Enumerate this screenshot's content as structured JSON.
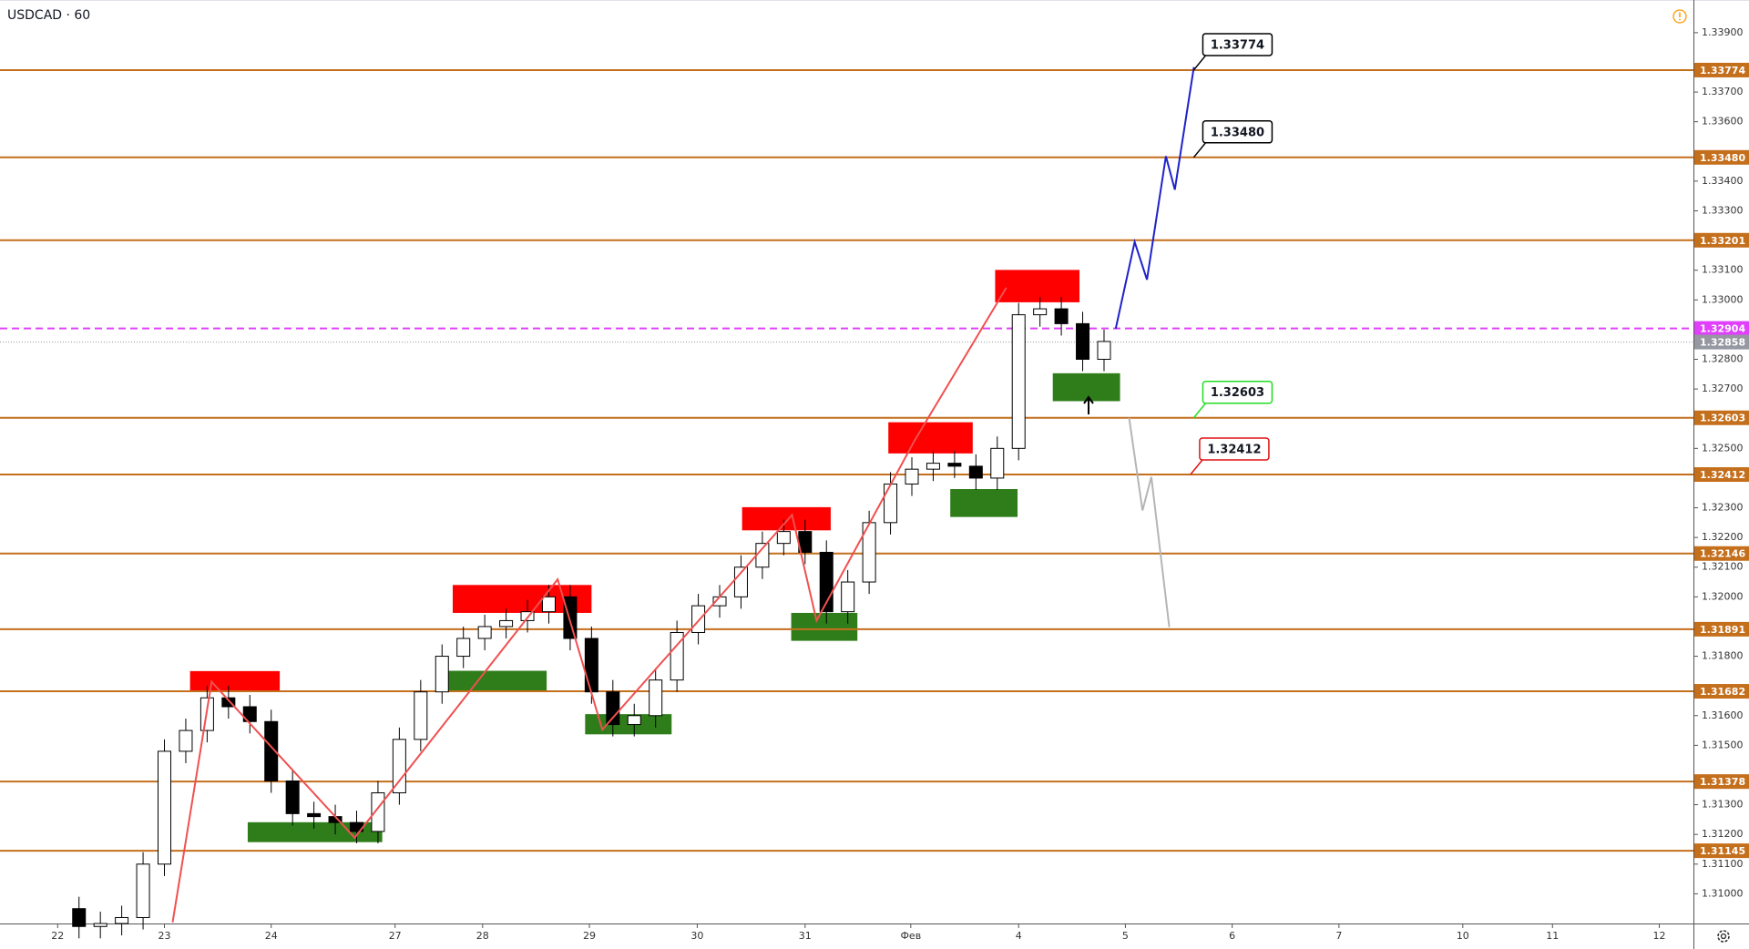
{
  "chart_data": {
    "type": "candlestick",
    "title": "USDCAD · 60",
    "xlim": [
      -0.54,
      15.32
    ],
    "ylim": [
      1.309,
      1.3401
    ],
    "xticks": [
      {
        "value": 0,
        "label": "22"
      },
      {
        "value": 1,
        "label": "23"
      },
      {
        "value": 2,
        "label": "24"
      },
      {
        "value": 3.16,
        "label": "27"
      },
      {
        "value": 3.98,
        "label": "28"
      },
      {
        "value": 4.98,
        "label": "29"
      },
      {
        "value": 5.99,
        "label": "30"
      },
      {
        "value": 7,
        "label": "31"
      },
      {
        "value": 7.99,
        "label": "Фев"
      },
      {
        "value": 9,
        "label": "4"
      },
      {
        "value": 10,
        "label": "5"
      },
      {
        "value": 11,
        "label": "6"
      },
      {
        "value": 12,
        "label": "7"
      },
      {
        "value": 13.16,
        "label": "10"
      },
      {
        "value": 14,
        "label": "11"
      },
      {
        "value": 15,
        "label": "12"
      }
    ],
    "yticks": [
      {
        "value": 1.31,
        "label": "1.31000"
      },
      {
        "value": 1.311,
        "label": "1.31100"
      },
      {
        "value": 1.312,
        "label": "1.31200"
      },
      {
        "value": 1.313,
        "label": "1.31300"
      },
      {
        "value": 1.315,
        "label": "1.31500"
      },
      {
        "value": 1.316,
        "label": "1.31600"
      },
      {
        "value": 1.318,
        "label": "1.31800"
      },
      {
        "value": 1.32,
        "label": "1.32000"
      },
      {
        "value": 1.321,
        "label": "1.32100"
      },
      {
        "value": 1.322,
        "label": "1.32200"
      },
      {
        "value": 1.323,
        "label": "1.32300"
      },
      {
        "value": 1.325,
        "label": "1.32500"
      },
      {
        "value": 1.327,
        "label": "1.32700"
      },
      {
        "value": 1.328,
        "label": "1.32800"
      },
      {
        "value": 1.33,
        "label": "1.33000"
      },
      {
        "value": 1.331,
        "label": "1.33100"
      },
      {
        "value": 1.333,
        "label": "1.33300"
      },
      {
        "value": 1.334,
        "label": "1.33400"
      },
      {
        "value": 1.336,
        "label": "1.33600"
      },
      {
        "value": 1.337,
        "label": "1.33700"
      },
      {
        "value": 1.339,
        "label": "1.33900"
      }
    ],
    "x": [
      0.2,
      0.4,
      0.6,
      0.8,
      1.0,
      1.2,
      1.4,
      1.6,
      1.8,
      2.0,
      2.2,
      2.4,
      2.6,
      2.8,
      3.0,
      3.2,
      3.4,
      3.6,
      3.8,
      4.0,
      4.2,
      4.4,
      4.6,
      4.8,
      5.0,
      5.2,
      5.4,
      5.6,
      5.8,
      6.0,
      6.2,
      6.4,
      6.6,
      6.8,
      7.0,
      7.2,
      7.4,
      7.6,
      7.8,
      8.0,
      8.2,
      8.4,
      8.6,
      8.8,
      9.0,
      9.2,
      9.4,
      9.6,
      9.8
    ],
    "open": [
      1.3095,
      1.3089,
      1.309,
      1.3092,
      1.311,
      1.3148,
      1.3155,
      1.3166,
      1.3163,
      1.3158,
      1.3138,
      1.3127,
      1.3126,
      1.3124,
      1.3121,
      1.3134,
      1.3152,
      1.3168,
      1.318,
      1.3186,
      1.319,
      1.3192,
      1.3195,
      1.32,
      1.3186,
      1.3168,
      1.3157,
      1.316,
      1.3172,
      1.3188,
      1.3197,
      1.32,
      1.321,
      1.3218,
      1.3222,
      1.3215,
      1.3195,
      1.3205,
      1.3225,
      1.3238,
      1.3243,
      1.3245,
      1.3244,
      1.324,
      1.325,
      1.3295,
      1.3297,
      1.3292,
      1.328
    ],
    "high": [
      1.3099,
      1.3094,
      1.3096,
      1.3114,
      1.3152,
      1.3159,
      1.317,
      1.317,
      1.3167,
      1.3162,
      1.3142,
      1.3131,
      1.313,
      1.3128,
      1.3138,
      1.3156,
      1.3172,
      1.3184,
      1.319,
      1.3194,
      1.3196,
      1.3199,
      1.3204,
      1.3204,
      1.319,
      1.3172,
      1.3164,
      1.3176,
      1.3192,
      1.3201,
      1.3204,
      1.3214,
      1.3222,
      1.3226,
      1.3226,
      1.3219,
      1.3209,
      1.3229,
      1.3242,
      1.3247,
      1.3249,
      1.3249,
      1.3248,
      1.3254,
      1.3299,
      1.3301,
      1.3301,
      1.3296,
      1.329
    ],
    "low": [
      1.3085,
      1.3085,
      1.3086,
      1.3088,
      1.3106,
      1.3144,
      1.3151,
      1.3159,
      1.3154,
      1.3134,
      1.3123,
      1.3122,
      1.312,
      1.3117,
      1.3117,
      1.313,
      1.3148,
      1.3164,
      1.3176,
      1.3182,
      1.3186,
      1.3188,
      1.3191,
      1.3182,
      1.3164,
      1.3153,
      1.3153,
      1.3156,
      1.3168,
      1.3184,
      1.3193,
      1.3196,
      1.3206,
      1.3214,
      1.3211,
      1.3191,
      1.3191,
      1.3201,
      1.3221,
      1.3234,
      1.3239,
      1.324,
      1.3236,
      1.3236,
      1.3246,
      1.3291,
      1.3288,
      1.3276,
      1.3276
    ],
    "close": [
      1.3089,
      1.309,
      1.3092,
      1.311,
      1.3148,
      1.3155,
      1.3166,
      1.3163,
      1.3158,
      1.3138,
      1.3127,
      1.3126,
      1.3124,
      1.3121,
      1.3134,
      1.3152,
      1.3168,
      1.318,
      1.3186,
      1.319,
      1.3192,
      1.3195,
      1.32,
      1.3186,
      1.3168,
      1.3157,
      1.316,
      1.3172,
      1.3188,
      1.3197,
      1.32,
      1.321,
      1.3218,
      1.3222,
      1.3215,
      1.3195,
      1.3205,
      1.3225,
      1.3238,
      1.3243,
      1.3245,
      1.3244,
      1.324,
      1.325,
      1.3295,
      1.3297,
      1.3292,
      1.328,
      1.3286
    ],
    "up_color": "#ffffff",
    "down_color": "#000000",
    "levels": [
      {
        "value": 1.33774,
        "label": "1.33774",
        "color": "#c46f1c",
        "style": "solid"
      },
      {
        "value": 1.3348,
        "label": "1.33480",
        "color": "#c46f1c",
        "style": "solid"
      },
      {
        "value": 1.33201,
        "label": "1.33201",
        "color": "#c46f1c",
        "style": "solid"
      },
      {
        "value": 1.32904,
        "label": "1.32904",
        "color": "#e040fb",
        "style": "dashed"
      },
      {
        "value": 1.32858,
        "label": "1.32858",
        "color": "#9598a1",
        "style": "dotted"
      },
      {
        "value": 1.32603,
        "label": "1.32603",
        "color": "#c46f1c",
        "style": "solid"
      },
      {
        "value": 1.32412,
        "label": "1.32412",
        "color": "#c46f1c",
        "style": "solid"
      },
      {
        "value": 1.32146,
        "label": "1.32146",
        "color": "#c46f1c",
        "style": "solid"
      },
      {
        "value": 1.31891,
        "label": "1.31891",
        "color": "#c46f1c",
        "style": "solid"
      },
      {
        "value": 1.31682,
        "label": "1.31682",
        "color": "#c46f1c",
        "style": "solid"
      },
      {
        "value": 1.31378,
        "label": "1.31378",
        "color": "#c46f1c",
        "style": "solid"
      },
      {
        "value": 1.31145,
        "label": "1.31145",
        "color": "#c46f1c",
        "style": "solid"
      }
    ],
    "zones": [
      {
        "x": [
          1.24,
          2.08
        ],
        "y": [
          1.3168,
          1.3175
        ],
        "color": "#ff0000"
      },
      {
        "x": [
          1.78,
          3.04
        ],
        "y": [
          1.31174,
          1.31241
        ],
        "color": "#2e7d1a"
      },
      {
        "x": [
          3.66,
          4.58
        ],
        "y": [
          1.31684,
          1.31751
        ],
        "color": "#2e7d1a"
      },
      {
        "x": [
          3.7,
          5.0
        ],
        "y": [
          1.31946,
          1.3204
        ],
        "color": "#ff0000"
      },
      {
        "x": [
          4.94,
          5.75
        ],
        "y": [
          1.31537,
          1.31605
        ],
        "color": "#2e7d1a"
      },
      {
        "x": [
          6.41,
          7.24
        ],
        "y": [
          1.32224,
          1.32302
        ],
        "color": "#ff0000"
      },
      {
        "x": [
          6.87,
          7.49
        ],
        "y": [
          1.31852,
          1.31946
        ],
        "color": "#2e7d1a"
      },
      {
        "x": [
          7.78,
          8.57
        ],
        "y": [
          1.32483,
          1.32588
        ],
        "color": "#ff0000"
      },
      {
        "x": [
          8.36,
          8.99
        ],
        "y": [
          1.32269,
          1.32363
        ],
        "color": "#2e7d1a"
      },
      {
        "x": [
          8.78,
          9.57
        ],
        "y": [
          1.32992,
          1.33101
        ],
        "color": "#ff0000"
      },
      {
        "x": [
          9.32,
          9.95
        ],
        "y": [
          1.32659,
          1.32753
        ],
        "color": "#2e7d1a"
      }
    ],
    "paths": [
      {
        "color": "#f05050",
        "x": [
          1.077,
          1.442,
          2.781,
          4.683,
          5.101,
          6.878,
          7.108,
          8.028,
          8.885
        ],
        "values": [
          1.30904,
          1.31714,
          1.31189,
          1.32059,
          1.31553,
          1.32276,
          1.3192,
          1.32528,
          1.33041
        ]
      },
      {
        "color": "#1e22c8",
        "x": [
          9.909,
          10.087,
          10.202,
          10.379,
          10.463,
          10.641
        ],
        "values": [
          1.32903,
          1.33195,
          1.33068,
          1.33484,
          1.33371,
          1.33784
        ]
      },
      {
        "color": "#b5b5b5",
        "x": [
          10.035,
          10.16,
          10.243,
          10.411
        ],
        "values": [
          1.32603,
          1.32291,
          1.32404,
          1.31898
        ]
      }
    ],
    "callouts": [
      {
        "text": "1.33774",
        "x": 10.64,
        "value": 1.33774,
        "color": "#000000"
      },
      {
        "text": "1.33480",
        "x": 10.64,
        "value": 1.3348,
        "color": "#000000"
      },
      {
        "text": "1.32603",
        "x": 10.64,
        "value": 1.32603,
        "color": "#22dd22"
      },
      {
        "text": "1.32412",
        "x": 10.61,
        "value": 1.32412,
        "color": "#e01010"
      }
    ]
  }
}
